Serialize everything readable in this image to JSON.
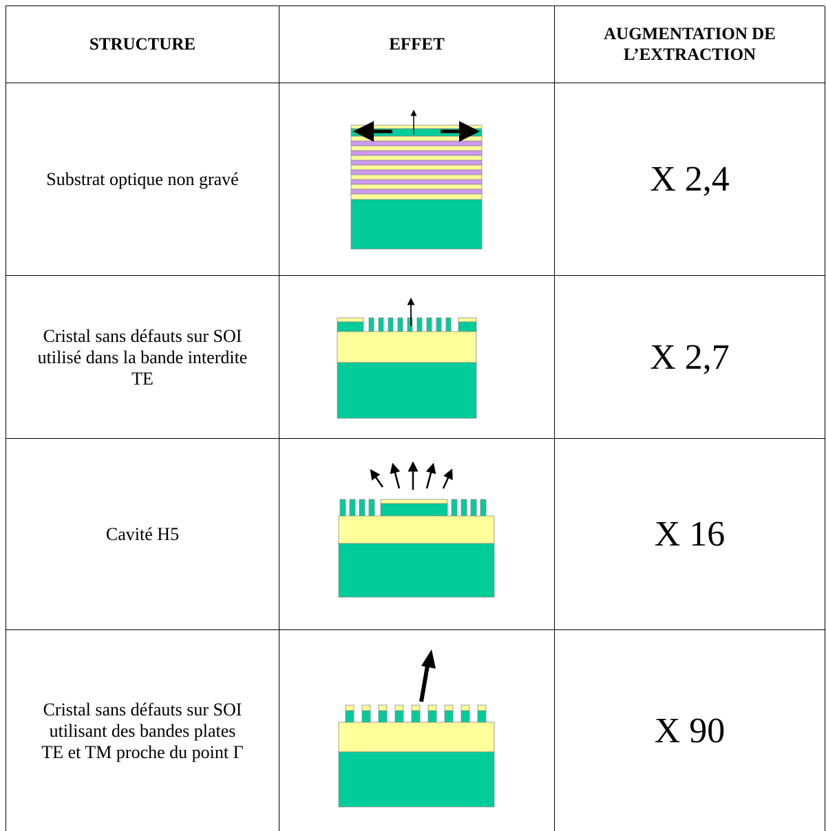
{
  "table": {
    "header": [
      "STRUCTURE",
      "EFFET",
      "AUGMENTATION DE L’EXTRACTION"
    ],
    "rows": [
      {
        "structure": [
          "Substrat optique non gravé"
        ],
        "extraction": "X 2,4"
      },
      {
        "structure": [
          "Cristal sans défauts sur SOI",
          "utilisé dans la bande interdite",
          "TE"
        ],
        "extraction": "X 2,7"
      },
      {
        "structure": [
          "Cavité H5"
        ],
        "extraction": "X 16"
      },
      {
        "structure": [
          "Cristal sans défauts sur SOI",
          "utilisant des bandes plates",
          "TE et TM proche du point Γ"
        ],
        "extraction": "X 90"
      }
    ]
  }
}
